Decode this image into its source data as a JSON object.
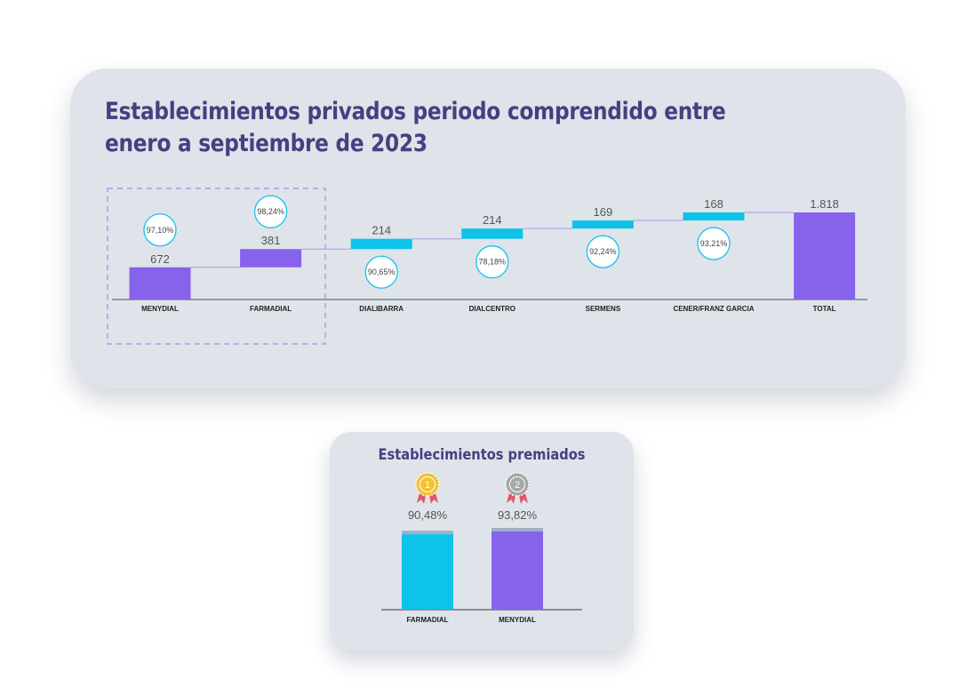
{
  "waterfall": {
    "title": "Establecimientos privados periodo comprendido entre enero a septiembre de 2023",
    "highlight_box": "dashed",
    "chart_data": {
      "type": "bar",
      "subtype": "waterfall",
      "categories": [
        "MENYDIAL",
        "FARMADIAL",
        "DIALIBARRA",
        "DIALCENTRO",
        "SERMENS",
        "CENER/FRANZ GARCIA",
        "TOTAL"
      ],
      "values": [
        672,
        381,
        214,
        214,
        169,
        168,
        1818
      ],
      "value_labels": [
        "672",
        "381",
        "214",
        "214",
        "169",
        "168",
        "1.818"
      ],
      "percent_labels": [
        "97,10%",
        "98,24%",
        "90,65%",
        "78,18%",
        "92,24%",
        "93,21%",
        ""
      ],
      "percent_position": [
        "above",
        "above",
        "below",
        "below",
        "below",
        "below",
        "none"
      ],
      "bar_colors": [
        "#8763ec",
        "#8763ec",
        "#0ec3e9",
        "#0ec3e9",
        "#0ec3e9",
        "#0ec3e9",
        "#8763ec"
      ],
      "is_total": [
        false,
        false,
        false,
        false,
        false,
        false,
        true
      ],
      "ylim": [
        0,
        1818
      ],
      "grid": false,
      "legend": "none"
    }
  },
  "awards": {
    "title": "Establecimientos premiados",
    "chart_data": {
      "type": "bar",
      "categories": [
        "FARMADIAL",
        "MENYDIAL"
      ],
      "values": [
        90.48,
        93.82
      ],
      "value_labels": [
        "90,48%",
        "93,82%"
      ],
      "medals": [
        "1",
        "2"
      ],
      "medal_icons": [
        "gold-medal-icon",
        "silver-medal-icon"
      ],
      "bar_colors": [
        "#0ec3e9",
        "#8763ec"
      ],
      "medal_colors": [
        "#f2c230",
        "#a7a7a7"
      ],
      "ylim": [
        0,
        100
      ],
      "grid": false,
      "legend": "none"
    }
  }
}
